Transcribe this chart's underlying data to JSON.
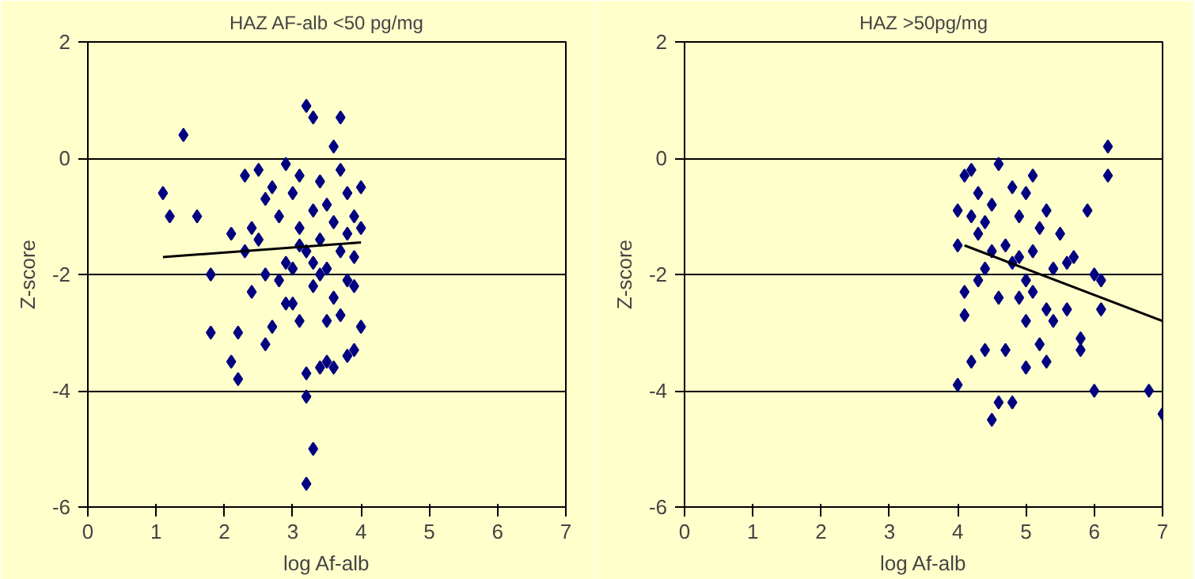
{
  "chart_data": [
    {
      "type": "scatter",
      "title": "HAZ AF-alb <50 pg/mg",
      "xlabel": "log Af-alb",
      "ylabel": "Z-score",
      "xlim": [
        0,
        7
      ],
      "ylim": [
        -6,
        2
      ],
      "xticks": [
        0,
        1,
        2,
        3,
        4,
        5,
        6,
        7
      ],
      "yticks": [
        -6,
        -4,
        -2,
        0,
        2
      ],
      "grid": "y",
      "series": [
        {
          "marker": "diamond",
          "color": "#000080",
          "x": [
            1.1,
            1.2,
            1.4,
            1.6,
            1.8,
            1.8,
            2.1,
            2.1,
            2.2,
            2.2,
            2.3,
            2.3,
            2.4,
            2.4,
            2.5,
            2.5,
            2.6,
            2.6,
            2.7,
            2.7,
            2.8,
            2.8,
            2.9,
            2.9,
            3.0,
            3.0,
            3.1,
            3.1,
            3.1,
            3.2,
            3.2,
            3.2,
            3.2,
            3.2,
            3.3,
            3.3,
            3.3,
            3.3,
            3.4,
            3.4,
            3.4,
            3.5,
            3.5,
            3.5,
            3.5,
            3.6,
            3.6,
            3.6,
            3.6,
            3.7,
            3.7,
            3.7,
            3.7,
            3.8,
            3.8,
            3.8,
            3.8,
            3.9,
            3.9,
            3.9,
            3.9,
            4.0,
            4.0,
            4.0,
            3.0,
            2.9,
            3.4,
            3.1,
            3.3,
            2.6
          ],
          "values": [
            -0.6,
            -1.0,
            0.4,
            -1.0,
            -2.0,
            -3.0,
            -1.3,
            -3.5,
            -3.0,
            -3.8,
            -0.3,
            -1.6,
            -1.2,
            -2.3,
            -0.2,
            -1.4,
            -2.0,
            -3.2,
            -0.5,
            -2.9,
            -1.0,
            -2.1,
            -0.1,
            -1.8,
            -0.6,
            -2.5,
            -0.3,
            -1.2,
            -2.8,
            0.9,
            -1.6,
            -3.7,
            -4.1,
            -5.6,
            -5.0,
            0.7,
            -0.9,
            -2.2,
            -1.4,
            -3.6,
            -0.4,
            -1.9,
            -2.8,
            -0.8,
            -3.5,
            -1.1,
            -2.4,
            0.2,
            -3.6,
            -1.6,
            -0.2,
            -2.7,
            0.7,
            -1.3,
            -2.1,
            -3.4,
            -0.6,
            -1.0,
            -1.7,
            -2.2,
            -3.3,
            -0.5,
            -2.9,
            -1.2,
            -1.9,
            -2.5,
            -2.0,
            -1.5,
            -1.8,
            -0.7
          ]
        },
        {
          "type": "line",
          "color": "#000000",
          "x": [
            1.1,
            4.0
          ],
          "values": [
            -1.7,
            -1.45
          ]
        }
      ]
    },
    {
      "type": "scatter",
      "title": "HAZ >50pg/mg",
      "xlabel": "log Af-alb",
      "ylabel": "Z-score",
      "xlim": [
        0,
        7
      ],
      "ylim": [
        -6,
        2
      ],
      "xticks": [
        0,
        1,
        2,
        3,
        4,
        5,
        6,
        7
      ],
      "yticks": [
        -6,
        -4,
        -2,
        0,
        2
      ],
      "grid": "y",
      "series": [
        {
          "marker": "diamond",
          "color": "#000080",
          "x": [
            4.0,
            4.0,
            4.0,
            4.1,
            4.1,
            4.1,
            4.2,
            4.2,
            4.2,
            4.3,
            4.3,
            4.3,
            4.4,
            4.4,
            4.5,
            4.5,
            4.5,
            4.6,
            4.6,
            4.6,
            4.7,
            4.7,
            4.8,
            4.8,
            4.8,
            4.9,
            4.9,
            5.0,
            5.0,
            5.0,
            5.1,
            5.1,
            5.1,
            5.2,
            5.2,
            5.3,
            5.3,
            5.3,
            5.4,
            5.4,
            5.5,
            5.6,
            5.6,
            5.7,
            5.8,
            5.8,
            5.9,
            6.0,
            6.0,
            6.1,
            6.1,
            6.2,
            6.2,
            6.8,
            7.0,
            4.4,
            4.9,
            5.0
          ],
          "values": [
            -3.9,
            -1.5,
            -0.9,
            -0.3,
            -2.3,
            -2.7,
            -0.2,
            -1.0,
            -3.5,
            -0.6,
            -1.3,
            -2.1,
            -3.3,
            -1.9,
            -0.8,
            -4.5,
            -1.6,
            -4.2,
            -2.4,
            -0.1,
            -1.5,
            -3.3,
            -4.2,
            -1.8,
            -0.5,
            -2.4,
            -1.0,
            -2.8,
            -3.6,
            -0.6,
            -1.6,
            -2.3,
            -0.3,
            -3.2,
            -1.2,
            -2.6,
            -3.5,
            -0.9,
            -1.9,
            -2.8,
            -1.3,
            -2.6,
            -1.8,
            -1.7,
            -3.1,
            -3.3,
            -0.9,
            -2.0,
            -4.0,
            -2.1,
            -2.6,
            0.2,
            -0.3,
            -4.0,
            -4.4,
            -1.1,
            -1.7,
            -2.1
          ]
        },
        {
          "type": "line",
          "color": "#000000",
          "x": [
            4.1,
            7.0
          ],
          "values": [
            -1.5,
            -2.8
          ]
        }
      ]
    }
  ]
}
